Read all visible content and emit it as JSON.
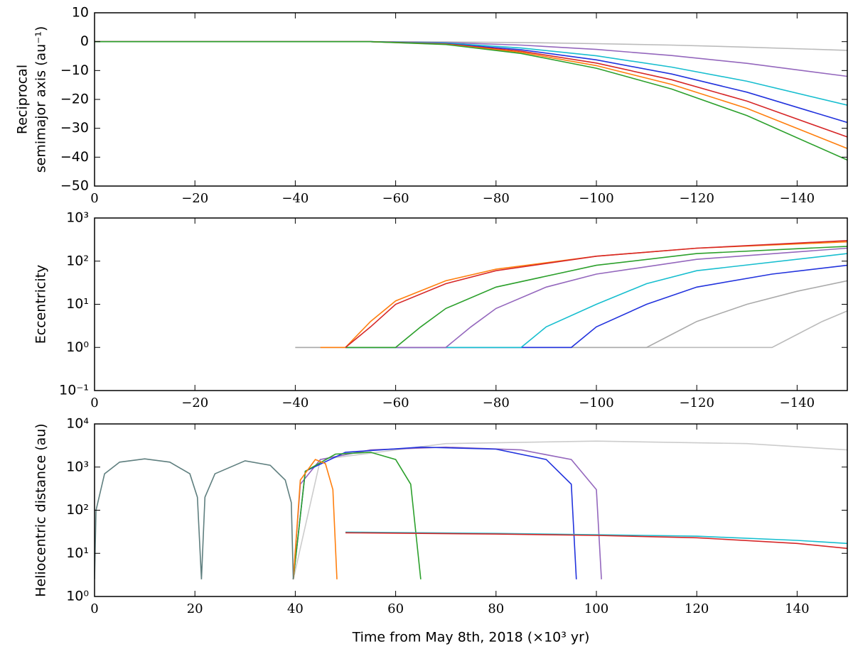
{
  "chart_data": [
    {
      "type": "line",
      "ylabel": [
        "Reciprocal",
        "semimajor axis (au⁻¹)"
      ],
      "xlim": [
        0,
        -150
      ],
      "xticks": [
        0,
        {
          "value": -20,
          "label": "−20"
        },
        {
          "value": -40,
          "label": "−40"
        },
        {
          "value": -60,
          "label": "−60"
        },
        {
          "value": -80,
          "label": "−80"
        },
        {
          "value": -100,
          "label": "−100"
        },
        {
          "value": -120,
          "label": "−120"
        },
        {
          "value": -140,
          "label": "−140"
        }
      ],
      "ylim": [
        -50,
        10
      ],
      "yticks": [
        10,
        0,
        {
          "value": -10,
          "label": "−10"
        },
        {
          "value": -20,
          "label": "−20"
        },
        {
          "value": -30,
          "label": "−30"
        },
        {
          "value": -40,
          "label": "−40"
        },
        {
          "value": -50,
          "label": "−50"
        }
      ],
      "yscale": "linear",
      "series": [
        {
          "color": "#bbbbbb",
          "x": [
            0,
            -55,
            -70,
            -85,
            -100,
            -115,
            -130,
            -150
          ],
          "values": [
            0,
            0,
            -0.1,
            -0.3,
            -0.7,
            -1.2,
            -1.9,
            -3
          ]
        },
        {
          "color": "#9467bd",
          "x": [
            0,
            -55,
            -70,
            -85,
            -100,
            -115,
            -130,
            -150
          ],
          "values": [
            0,
            0,
            -0.3,
            -1.2,
            -2.7,
            -4.8,
            -7.5,
            -12
          ]
        },
        {
          "color": "#17becf",
          "x": [
            0,
            -55,
            -70,
            -85,
            -100,
            -115,
            -130,
            -150
          ],
          "values": [
            0,
            0,
            -0.5,
            -2.2,
            -4.9,
            -8.8,
            -13.7,
            -22
          ]
        },
        {
          "color": "#2233dd",
          "x": [
            0,
            -55,
            -70,
            -85,
            -100,
            -115,
            -130,
            -150
          ],
          "values": [
            0,
            0,
            -0.7,
            -2.8,
            -6.3,
            -11.2,
            -17.5,
            -28
          ]
        },
        {
          "color": "#d62728",
          "x": [
            0,
            -55,
            -70,
            -85,
            -100,
            -115,
            -130,
            -150
          ],
          "values": [
            0,
            0,
            -0.8,
            -3.3,
            -7.4,
            -13.2,
            -20.6,
            -33
          ]
        },
        {
          "color": "#ff7f0e",
          "x": [
            0,
            -55,
            -70,
            -85,
            -100,
            -115,
            -130,
            -150
          ],
          "values": [
            0,
            0,
            -0.9,
            -3.7,
            -8.3,
            -14.8,
            -23.1,
            -37
          ]
        },
        {
          "color": "#2ca02c",
          "x": [
            0,
            -55,
            -70,
            -85,
            -100,
            -115,
            -130,
            -150
          ],
          "values": [
            0,
            0,
            -1.0,
            -4.1,
            -9.2,
            -16.4,
            -25.6,
            -41
          ]
        }
      ]
    },
    {
      "type": "line",
      "ylabel": [
        "Eccentricity"
      ],
      "xlim": [
        0,
        -150
      ],
      "xticks": [
        0,
        {
          "value": -20,
          "label": "−20"
        },
        {
          "value": -40,
          "label": "−40"
        },
        {
          "value": -60,
          "label": "−60"
        },
        {
          "value": -80,
          "label": "−80"
        },
        {
          "value": -100,
          "label": "−100"
        },
        {
          "value": -120,
          "label": "−120"
        },
        {
          "value": -140,
          "label": "−140"
        }
      ],
      "ylim": [
        0.1,
        1000
      ],
      "yticks": [
        {
          "value": 1000,
          "label": "10³"
        },
        {
          "value": 100,
          "label": "10²"
        },
        {
          "value": 10,
          "label": "10¹"
        },
        {
          "value": 1,
          "label": "10⁰"
        },
        {
          "value": 0.1,
          "label": "10⁻¹"
        }
      ],
      "yscale": "log",
      "series": [
        {
          "color": "#bbbbbb",
          "x": [
            -40,
            -135,
            -140,
            -145,
            -150
          ],
          "values": [
            1,
            1,
            2,
            4,
            7
          ]
        },
        {
          "color": "#aaaaaa",
          "x": [
            -40,
            -110,
            -115,
            -120,
            -130,
            -140,
            -150
          ],
          "values": [
            1,
            1,
            2,
            4,
            10,
            20,
            35
          ]
        },
        {
          "color": "#2233dd",
          "x": [
            -50,
            -95,
            -100,
            -110,
            -120,
            -135,
            -150
          ],
          "values": [
            1,
            1,
            3,
            10,
            25,
            50,
            80
          ]
        },
        {
          "color": "#17becf",
          "x": [
            -50,
            -85,
            -90,
            -100,
            -110,
            -120,
            -150
          ],
          "values": [
            1,
            1,
            3,
            10,
            30,
            60,
            150
          ]
        },
        {
          "color": "#9467bd",
          "x": [
            -50,
            -70,
            -75,
            -80,
            -90,
            -100,
            -120,
            -150
          ],
          "values": [
            1,
            1,
            3,
            8,
            25,
            50,
            110,
            200
          ]
        },
        {
          "color": "#2ca02c",
          "x": [
            -50,
            -60,
            -65,
            -70,
            -80,
            -100,
            -120,
            -150
          ],
          "values": [
            1,
            1,
            3,
            8,
            25,
            80,
            150,
            220
          ]
        },
        {
          "color": "#ff7f0e",
          "x": [
            -45,
            -50,
            -55,
            -60,
            -70,
            -80,
            -100,
            -120,
            -150
          ],
          "values": [
            1,
            1,
            4,
            12,
            35,
            65,
            130,
            200,
            280
          ]
        },
        {
          "color": "#d62728",
          "x": [
            -50,
            -55,
            -60,
            -70,
            -80,
            -100,
            -120,
            -150
          ],
          "values": [
            1,
            3,
            10,
            30,
            60,
            130,
            200,
            300
          ]
        }
      ]
    },
    {
      "type": "line",
      "ylabel": [
        "Heliocentric distance (au)"
      ],
      "xlabel": "Time from May 8th, 2018 (×10³ yr)",
      "xlim": [
        0,
        150
      ],
      "xticks": [
        0,
        20,
        40,
        60,
        80,
        100,
        120,
        140
      ],
      "ylim": [
        1,
        10000
      ],
      "yticks": [
        {
          "value": 10000,
          "label": "10⁴"
        },
        {
          "value": 1000,
          "label": "10³"
        },
        {
          "value": 100,
          "label": "10²"
        },
        {
          "value": 10,
          "label": "10¹"
        },
        {
          "value": 1,
          "label": "10⁰"
        }
      ],
      "yscale": "log",
      "series": [
        {
          "color": "#cccccc",
          "x": [
            39.6,
            45,
            70,
            100,
            130,
            150
          ],
          "values": [
            2.5,
            1500,
            3500,
            4000,
            3500,
            2500
          ]
        },
        {
          "color": "#9467bd",
          "x": [
            39.6,
            41,
            45,
            55,
            70,
            85,
            95,
            100,
            101
          ],
          "values": [
            2.5,
            400,
            1500,
            2500,
            2900,
            2500,
            1500,
            300,
            2.5
          ]
        },
        {
          "color": "#2233dd",
          "x": [
            39.6,
            42,
            50,
            65,
            80,
            90,
            95,
            96
          ],
          "values": [
            2.5,
            800,
            2200,
            2900,
            2600,
            1500,
            400,
            2.5
          ]
        },
        {
          "color": "#2ca02c",
          "x": [
            39.6,
            42,
            48,
            55,
            60,
            63,
            65
          ],
          "values": [
            2.5,
            800,
            2000,
            2200,
            1500,
            400,
            2.5
          ]
        },
        {
          "color": "#ff7f0e",
          "x": [
            39.6,
            41,
            44,
            46,
            47.5,
            48.3
          ],
          "values": [
            2.5,
            500,
            1500,
            1200,
            300,
            2.5
          ]
        },
        {
          "color": "#5f7f7f",
          "x": [
            0,
            0.3,
            2,
            5,
            10,
            15,
            19,
            20.5,
            21.3,
            22,
            24,
            30,
            35,
            38,
            39.2,
            39.6
          ],
          "values": [
            2.5,
            100,
            700,
            1300,
            1550,
            1300,
            700,
            200,
            2.5,
            200,
            700,
            1400,
            1100,
            500,
            150,
            2.5
          ]
        },
        {
          "color": "#17becf",
          "x": [
            50,
            80,
            100,
            120,
            140,
            150
          ],
          "values": [
            31,
            29,
            27,
            25,
            20,
            17
          ]
        },
        {
          "color": "#d62728",
          "x": [
            50,
            80,
            100,
            120,
            140,
            150
          ],
          "values": [
            30,
            28,
            26,
            23,
            17,
            13
          ]
        }
      ]
    }
  ]
}
